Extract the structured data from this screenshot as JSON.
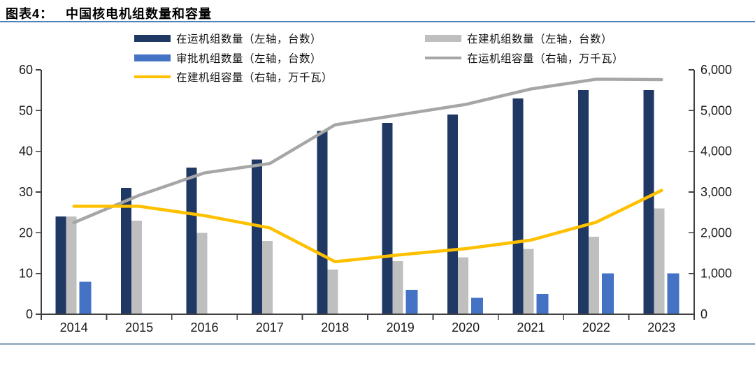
{
  "header": {
    "label": "图表4：",
    "title": "中国核电机组数量和容量"
  },
  "legend": [
    {
      "id": "operating-count",
      "swatch": "bar",
      "color": "#1f3864",
      "label": "在运机组数量（左轴，台数）",
      "column": 1,
      "row": 1
    },
    {
      "id": "approved-count",
      "swatch": "bar",
      "color": "#4472c4",
      "label": "审批机组数量（左轴，台数）",
      "column": 1,
      "row": 2
    },
    {
      "id": "under-construction-capacity",
      "swatch": "line",
      "color": "#ffc000",
      "label": "在建机组容量（右轴，万千瓦）",
      "column": 1,
      "row": 3
    },
    {
      "id": "under-construction-count",
      "swatch": "bar",
      "color": "#bfbfbf",
      "label": "在建机组数量（左轴，台数）",
      "column": 2,
      "row": 1
    },
    {
      "id": "operating-capacity",
      "swatch": "line",
      "color": "#a6a6a6",
      "label": "在运机组容量（右轴，万千瓦）",
      "column": 2,
      "row": 2
    }
  ],
  "chart_data": {
    "type": "bar",
    "subtype": "grouped-bar-with-lines",
    "title": "中国核电机组数量和容量",
    "categories": [
      "2014",
      "2015",
      "2016",
      "2017",
      "2018",
      "2019",
      "2020",
      "2021",
      "2022",
      "2023"
    ],
    "series": [
      {
        "id": "operating-count",
        "name": "在运机组数量（左轴，台数）",
        "type": "bar",
        "axis": "left",
        "color": "#1f3864",
        "values": [
          24,
          31,
          36,
          38,
          45,
          47,
          49,
          53,
          55,
          55
        ]
      },
      {
        "id": "under-construction-count",
        "name": "在建机组数量（左轴，台数）",
        "type": "bar",
        "axis": "left",
        "color": "#bfbfbf",
        "values": [
          24,
          23,
          20,
          18,
          11,
          13,
          14,
          16,
          19,
          26
        ]
      },
      {
        "id": "approved-count",
        "name": "审批机组数量（左轴，台数）",
        "type": "bar",
        "axis": "left",
        "color": "#4472c4",
        "values": [
          8,
          0,
          0,
          0,
          0,
          6,
          4,
          5,
          10,
          10
        ]
      },
      {
        "id": "operating-capacity",
        "name": "在运机组容量（右轴，万千瓦）",
        "type": "line",
        "axis": "right",
        "color": "#a6a6a6",
        "values": [
          2250,
          2920,
          3470,
          3700,
          4650,
          4900,
          5150,
          5530,
          5770,
          5760
        ]
      },
      {
        "id": "under-construction-capacity",
        "name": "在建机组容量（右轴，万千瓦）",
        "type": "line",
        "axis": "right",
        "color": "#ffc000",
        "values": [
          2650,
          2650,
          2420,
          2120,
          1290,
          1460,
          1610,
          1820,
          2260,
          3040
        ]
      }
    ],
    "left_axis": {
      "min": 0,
      "max": 60,
      "step": 10,
      "tick_labels": [
        "0",
        "10",
        "20",
        "30",
        "40",
        "50",
        "60"
      ]
    },
    "right_axis": {
      "min": 0,
      "max": 6000,
      "step": 1000,
      "tick_labels": [
        "0",
        "1,000",
        "2,000",
        "3,000",
        "4,000",
        "5,000",
        "6,000"
      ]
    },
    "grid": false,
    "legend_position": "top"
  },
  "colors": {
    "title_rule": "#4f81bd",
    "footer_rule": "#9fb4c4",
    "axis": "#404040",
    "tick_label": "#1a1a1a"
  }
}
